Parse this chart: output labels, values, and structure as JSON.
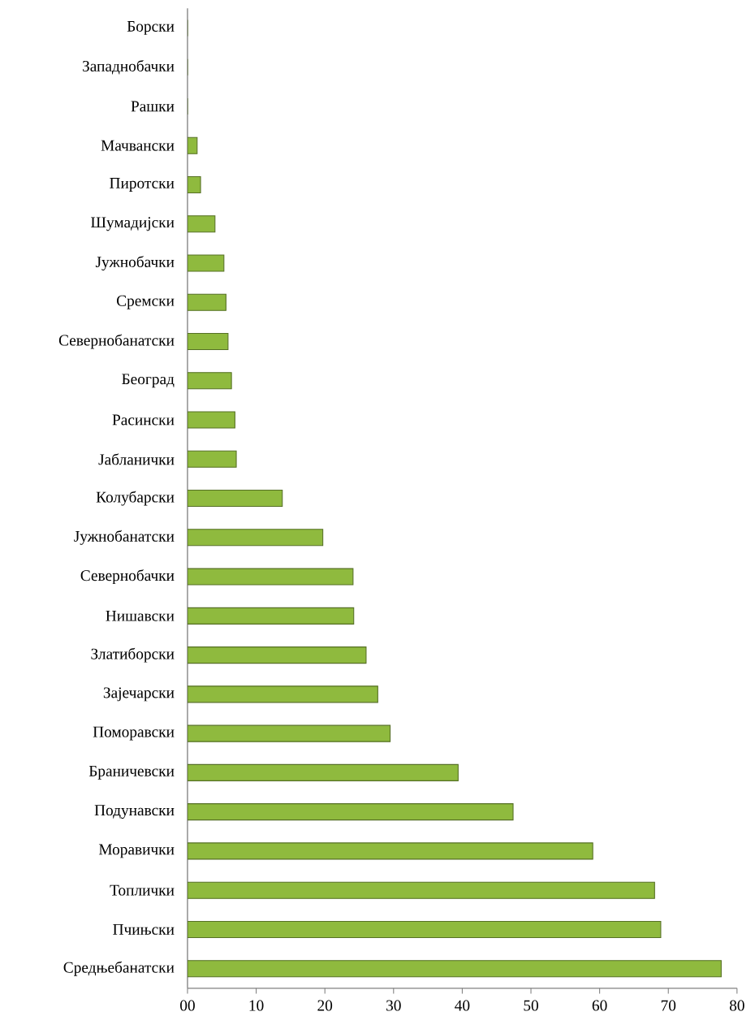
{
  "chart_data": {
    "type": "bar",
    "orientation": "horizontal",
    "categories": [
      "Борски",
      "Западнобачки",
      "Рашки",
      "Мачвански",
      "Пиротски",
      "Шумадијски",
      "Јужнобачки",
      "Сремски",
      "Севернобанатски",
      "Београд",
      "Расински",
      "Јабланички",
      "Колубарски",
      "Јужнобанатски",
      "Севернобачки",
      "Нишавски",
      "Златиборски",
      "Зајечарски",
      "Поморавски",
      "Браничевски",
      "Подунавски",
      "Моравички",
      "Топлички",
      "Пчињски",
      "Средњебанатски"
    ],
    "values": [
      0,
      0,
      0,
      1.4,
      1.9,
      4.0,
      5.3,
      5.6,
      5.9,
      6.4,
      6.9,
      7.1,
      13.8,
      19.7,
      24.1,
      24.2,
      26.0,
      27.7,
      29.5,
      39.4,
      47.4,
      59.0,
      68.0,
      68.9,
      77.7
    ],
    "color": "#8fba3e",
    "xlim": [
      0,
      80
    ],
    "xticks": [
      {
        "value": 0,
        "label": "00"
      },
      10,
      20,
      30,
      40,
      50,
      60,
      70,
      80
    ]
  }
}
